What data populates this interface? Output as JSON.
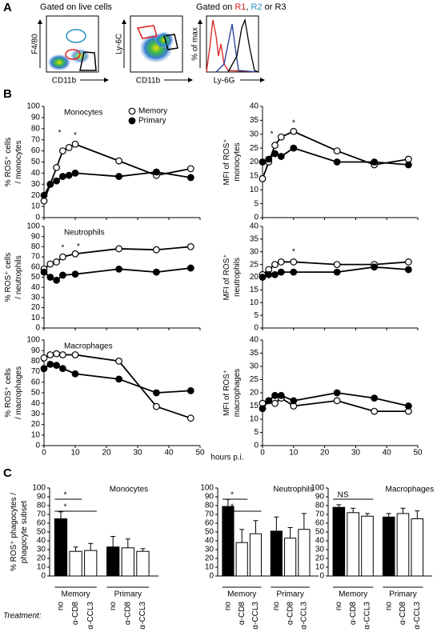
{
  "panel_labels": [
    "A",
    "B",
    "C"
  ],
  "flow": {
    "plot1_title": "Gated on live cells",
    "plot3_title": [
      "Gated on",
      "R1",
      ",",
      "R2",
      "or R3"
    ],
    "axis_labels": [
      "F4/80",
      "CD11b",
      "Ly-6C",
      "CD11b",
      "% of max",
      "Ly-6G"
    ]
  },
  "x_label": "hours p.i.",
  "treatment_label": "Treatment:",
  "chart_data": [
    {
      "type": "line",
      "title": "Monocytes",
      "ylabel": [
        "% ROS⁺ cells",
        "/ monocytes"
      ],
      "legend": true,
      "x": [
        0,
        2,
        4,
        6,
        8,
        10,
        24,
        36,
        47
      ],
      "xlim": [
        0,
        50
      ],
      "xticks": [
        0,
        10,
        20,
        30,
        40,
        50
      ],
      "ylim": [
        0,
        100
      ],
      "yticks": [
        0,
        10,
        20,
        30,
        40,
        50,
        60,
        70,
        80,
        90,
        100
      ],
      "series": [
        {
          "name": "Memory",
          "color": "#000000",
          "marker_fill": "#ffffff",
          "values": [
            15,
            30,
            45,
            60,
            63,
            66,
            51,
            38,
            44
          ]
        },
        {
          "name": "Primary",
          "color": "#000000",
          "marker_fill": "#000000",
          "values": [
            20,
            30,
            33,
            37,
            38,
            40,
            37,
            41,
            36
          ]
        }
      ],
      "annotations": [
        {
          "text": "*",
          "x": 5,
          "y": 76
        },
        {
          "text": "*",
          "x": 10,
          "y": 74
        }
      ]
    },
    {
      "type": "line",
      "ylabel": [
        "MFI of ROS⁺",
        "monocytes"
      ],
      "x": [
        0,
        2,
        4,
        6,
        10,
        24,
        36,
        47
      ],
      "xlim": [
        0,
        50
      ],
      "xticks": [
        0,
        10,
        20,
        30,
        40,
        50
      ],
      "ylim": [
        0,
        40
      ],
      "yticks": [
        0,
        5,
        10,
        15,
        20,
        25,
        30,
        35,
        40
      ],
      "series": [
        {
          "color": "#000000",
          "marker_fill": "#ffffff",
          "values": [
            14,
            20,
            26,
            29,
            31,
            24,
            19,
            21
          ]
        },
        {
          "color": "#000000",
          "marker_fill": "#000000",
          "values": [
            20,
            21,
            23,
            22,
            25,
            20,
            20,
            19
          ]
        }
      ],
      "annotations": [
        {
          "text": "*",
          "x": 3,
          "y": 30
        },
        {
          "text": "*",
          "x": 10,
          "y": 34
        }
      ]
    },
    {
      "type": "line",
      "title": "Neutrophils",
      "ylabel": [
        "% ROS⁺ cells",
        "/ neutrophils"
      ],
      "x": [
        0,
        2,
        4,
        6,
        10,
        24,
        36,
        47
      ],
      "xlim": [
        0,
        50
      ],
      "xticks": [
        0,
        10,
        20,
        30,
        40,
        50
      ],
      "ylim": [
        0,
        100
      ],
      "yticks": [
        0,
        10,
        20,
        30,
        40,
        50,
        60,
        70,
        80,
        90,
        100
      ],
      "series": [
        {
          "color": "#000000",
          "marker_fill": "#ffffff",
          "values": [
            58,
            63,
            65,
            70,
            73,
            78,
            77,
            80
          ]
        },
        {
          "color": "#000000",
          "marker_fill": "#000000",
          "values": [
            55,
            50,
            47,
            52,
            53,
            58,
            55,
            59
          ]
        }
      ],
      "annotations": [
        {
          "text": "*",
          "x": 6,
          "y": 79
        },
        {
          "text": "*",
          "x": 11,
          "y": 80
        }
      ]
    },
    {
      "type": "line",
      "ylabel": [
        "MFI of ROS⁺",
        "neutrophils"
      ],
      "x": [
        0,
        2,
        4,
        6,
        10,
        24,
        36,
        47
      ],
      "xlim": [
        0,
        50
      ],
      "xticks": [
        0,
        10,
        20,
        30,
        40,
        50
      ],
      "ylim": [
        0,
        40
      ],
      "yticks": [
        0,
        5,
        10,
        15,
        20,
        25,
        30,
        35,
        40
      ],
      "series": [
        {
          "color": "#000000",
          "marker_fill": "#ffffff",
          "values": [
            21,
            23,
            25,
            26,
            26,
            25,
            25,
            26
          ]
        },
        {
          "color": "#000000",
          "marker_fill": "#000000",
          "values": [
            20,
            21,
            21,
            22,
            22,
            22,
            24,
            23
          ]
        }
      ],
      "annotations": [
        {
          "text": "*",
          "x": 10,
          "y": 30
        }
      ]
    },
    {
      "type": "line",
      "title": "Macrophages",
      "ylabel": [
        "% ROS⁺ cells",
        "/ macrophages"
      ],
      "x": [
        0,
        2,
        4,
        6,
        10,
        24,
        36,
        47
      ],
      "xlim": [
        0,
        50
      ],
      "xticks": [
        0,
        10,
        20,
        30,
        40,
        50
      ],
      "ylim": [
        0,
        100
      ],
      "yticks": [
        0,
        10,
        20,
        30,
        40,
        50,
        60,
        70,
        80,
        90,
        100
      ],
      "series": [
        {
          "color": "#000000",
          "marker_fill": "#ffffff",
          "values": [
            83,
            86,
            87,
            86,
            86,
            80,
            37,
            26
          ]
        },
        {
          "color": "#000000",
          "marker_fill": "#000000",
          "values": [
            73,
            77,
            76,
            73,
            68,
            63,
            50,
            52
          ]
        }
      ]
    },
    {
      "type": "line",
      "ylabel": [
        "MFI of ROS⁺",
        "macrophages"
      ],
      "x": [
        0,
        2,
        4,
        6,
        10,
        24,
        36,
        47
      ],
      "xlim": [
        0,
        50
      ],
      "xticks": [
        0,
        10,
        20,
        30,
        40,
        50
      ],
      "ylim": [
        0,
        40
      ],
      "yticks": [
        0,
        5,
        10,
        15,
        20,
        25,
        30,
        35,
        40
      ],
      "series": [
        {
          "color": "#000000",
          "marker_fill": "#ffffff",
          "values": [
            16,
            17,
            16,
            18,
            15,
            17,
            13,
            13
          ]
        },
        {
          "color": "#000000",
          "marker_fill": "#000000",
          "values": [
            14,
            17,
            19,
            19,
            17,
            20,
            18,
            15
          ]
        }
      ]
    },
    {
      "type": "bar",
      "title": "Monocytes",
      "ylabel": [
        "% ROS⁺ phagocytes /",
        "phagocyte subset"
      ],
      "categories": [
        "no",
        "α-CD8",
        "α-CCL3",
        "no",
        "α-CD8",
        "α-CCL3"
      ],
      "groups": [
        "Memory",
        "Primary"
      ],
      "colors": [
        "#000000",
        "#ffffff",
        "#ffffff",
        "#000000",
        "#ffffff",
        "#ffffff"
      ],
      "values": [
        65,
        28,
        29,
        33,
        32,
        28
      ],
      "errors": [
        8,
        5,
        8,
        12,
        10,
        3
      ],
      "ylim": [
        0,
        100
      ],
      "yticks": [
        0,
        10,
        20,
        30,
        40,
        50,
        60,
        70,
        80,
        90,
        100
      ],
      "comparisons": [
        {
          "label": "*"
        },
        {
          "label": "*"
        }
      ]
    },
    {
      "type": "bar",
      "title": "Neutrophils",
      "categories": [
        "no",
        "α-CD8",
        "α-CCL3",
        "no",
        "α-CD8",
        "α-CCL3"
      ],
      "groups": [
        "Memory",
        "Primary"
      ],
      "colors": [
        "#000000",
        "#ffffff",
        "#ffffff",
        "#000000",
        "#ffffff",
        "#ffffff"
      ],
      "values": [
        79,
        38,
        48,
        51,
        43,
        53
      ],
      "errors": [
        8,
        15,
        15,
        16,
        12,
        18
      ],
      "ylim": [
        0,
        100
      ],
      "yticks": [
        0,
        10,
        20,
        30,
        40,
        50,
        60,
        70,
        80,
        90,
        100
      ],
      "comparisons": [
        {
          "label": "*"
        },
        {
          "label": "*"
        }
      ]
    },
    {
      "type": "bar",
      "title": "Macrophages",
      "categories": [
        "no",
        "α-CD8",
        "α-CCL3",
        "no",
        "α-CD8",
        "α-CCL3"
      ],
      "groups": [
        "Memory",
        "Primary"
      ],
      "colors": [
        "#000000",
        "#ffffff",
        "#ffffff",
        "#000000",
        "#ffffff",
        "#ffffff"
      ],
      "values": [
        78,
        72,
        68,
        67,
        71,
        65
      ],
      "errors": [
        3,
        5,
        3,
        4,
        6,
        9
      ],
      "ylim": [
        0,
        100
      ],
      "yticks": [
        0,
        10,
        20,
        30,
        40,
        50,
        60,
        70,
        80,
        90,
        100
      ],
      "comparisons": [
        {
          "label": "NS"
        }
      ]
    }
  ]
}
